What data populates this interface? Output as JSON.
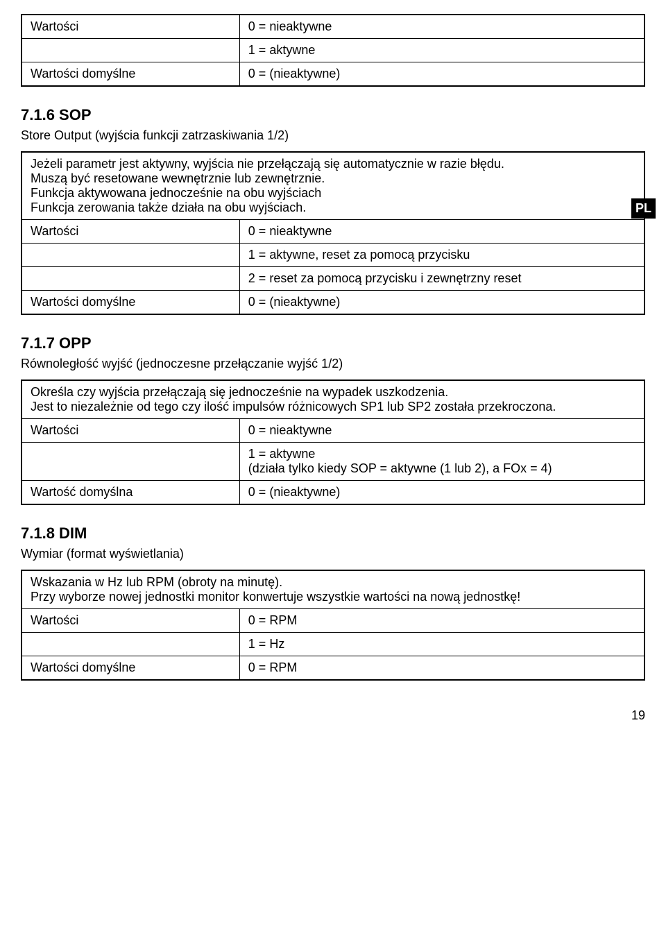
{
  "pl_badge": "PL",
  "page_number": "19",
  "table1": {
    "row1_label": "Wartości",
    "row1_value": "0 = nieaktywne",
    "row2_value": "1 = aktywne",
    "row3_label": "Wartości domyślne",
    "row3_value": "0 = (nieaktywne)"
  },
  "section_716": {
    "heading": "7.1.6 SOP",
    "subtitle": "Store Output (wyjścia funkcji zatrzaskiwania 1/2)",
    "desc_line1": "Jeżeli parametr jest aktywny, wyjścia nie przełączają się automatycznie w razie błędu.",
    "desc_line2": "Muszą być resetowane wewnętrznie lub zewnętrznie.",
    "desc_line3": "Funkcja aktywowana jednocześnie na obu wyjściach",
    "desc_line4": "Funkcja zerowania także działa na obu wyjściach.",
    "row1_label": "Wartości",
    "row1_value": "0 = nieaktywne",
    "row2_value": "1 = aktywne, reset za pomocą przycisku",
    "row3_value": "2 = reset za pomocą przycisku i zewnętrzny reset",
    "row4_label": "Wartości domyślne",
    "row4_value": "0 = (nieaktywne)"
  },
  "section_717": {
    "heading": "7.1.7 OPP",
    "subtitle": "Równoległość wyjść (jednoczesne przełączanie wyjść 1/2)",
    "desc_line1": "Określa czy wyjścia przełączają się jednocześnie na wypadek uszkodzenia.",
    "desc_line2": "Jest to niezależnie od tego czy ilość impulsów różnicowych SP1 lub SP2 została przekroczona.",
    "row1_label": "Wartości",
    "row1_value": "0 = nieaktywne",
    "row2_value_line1": "1 = aktywne",
    "row2_value_line2": "(działa tylko kiedy SOP = aktywne (1 lub 2), a FOx = 4)",
    "row3_label": "Wartość domyślna",
    "row3_value": "0 = (nieaktywne)"
  },
  "section_718": {
    "heading": "7.1.8 DIM",
    "subtitle": "Wymiar (format wyświetlania)",
    "desc_line1": "Wskazania w Hz lub RPM (obroty na minutę).",
    "desc_line2": "Przy wyborze nowej jednostki monitor konwertuje wszystkie wartości na nową jednostkę!",
    "row1_label": "Wartości",
    "row1_value": "0 = RPM",
    "row2_value": "1 = Hz",
    "row3_label": "Wartości domyślne",
    "row3_value": "0 = RPM"
  }
}
